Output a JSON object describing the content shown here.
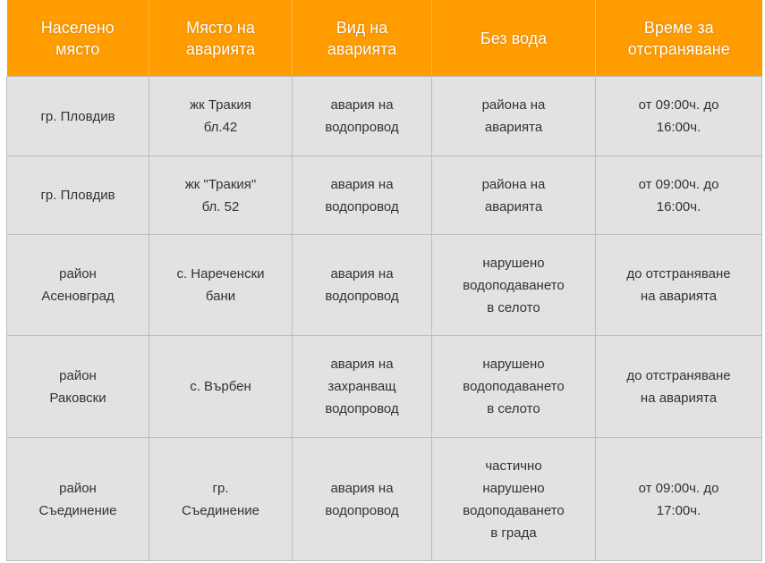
{
  "colors": {
    "header_bg": "#ff9c00",
    "cell_bg": "#e2e2e2"
  },
  "headers": [
    "Населено\nмясто",
    "Място на\nаварията",
    "Вид на\nаварията",
    "Без вода",
    "Време за\nотстраняване"
  ],
  "rows": [
    [
      "гр. Пловдив",
      "жк Тракия\nбл.42",
      "авария на\nводопровод",
      "района на\nаварията",
      "от 09:00ч. до\n16:00ч."
    ],
    [
      "гр. Пловдив",
      "жк \"Тракия\"\nбл. 52",
      "авария на\nводопровод",
      "района на\nаварията",
      "от 09:00ч. до\n16:00ч."
    ],
    [
      "район\nАсеновград",
      "с. Нареченски\nбани",
      "авария на\nводопровод",
      "нарушено\nводоподаването\nв селото",
      "до отстраняване\nна аварията"
    ],
    [
      "район\nРаковски",
      "с. Върбен",
      "авария на\nзахранващ\nводопровод",
      "нарушено\nводоподаването\nв селото",
      "до отстраняване\nна аварията"
    ],
    [
      "район\nСъединение",
      "гр.\nСъединение",
      "авария на\nводопровод",
      "частично\nнарушено\nводоподаването\nв града",
      "от 09:00ч. до\n17:00ч."
    ]
  ]
}
